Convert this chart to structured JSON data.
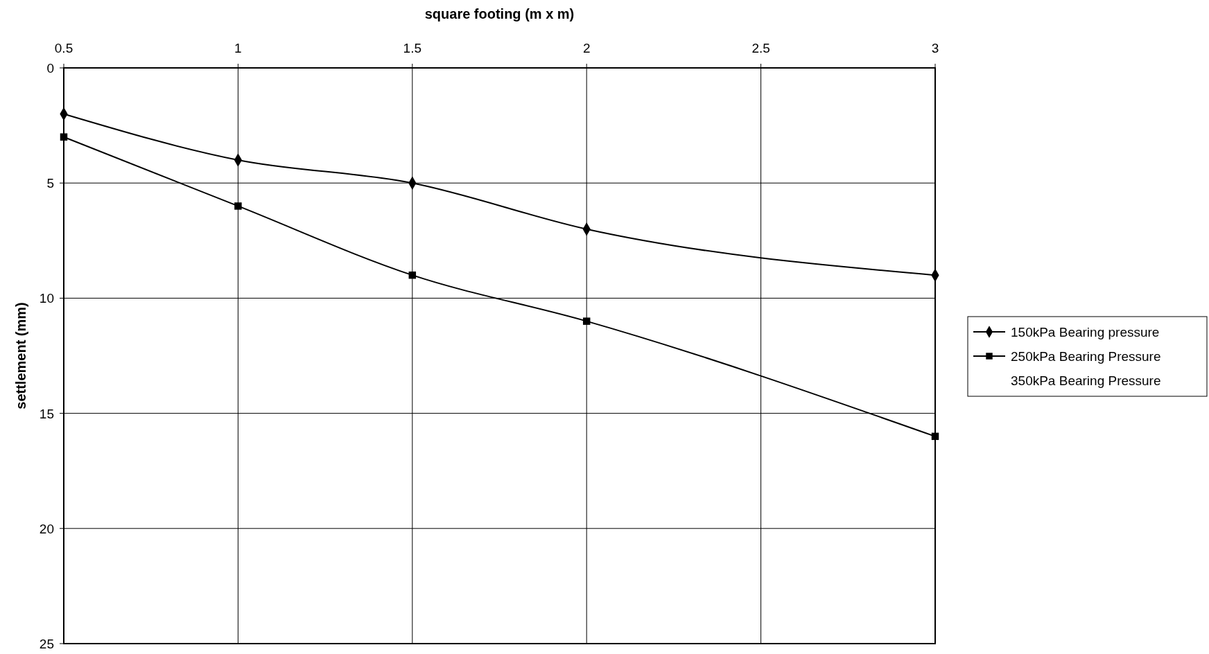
{
  "chart_data": {
    "type": "line",
    "xlabel": "square footing (m x m)",
    "ylabel": "settlement (mm)",
    "x": [
      0.5,
      1,
      1.5,
      2,
      3
    ],
    "xlim": [
      0.5,
      3
    ],
    "xticks": [
      0.5,
      1,
      1.5,
      2,
      2.5,
      3
    ],
    "ylim": [
      25,
      0
    ],
    "yticks": [
      0,
      5,
      10,
      15,
      20,
      25
    ],
    "grid": true,
    "legend": "right",
    "line_style": "solid",
    "series": [
      {
        "name": "150kPa Bearing pressure",
        "color": "#000000",
        "marker": "diamond",
        "values": [
          2,
          4,
          5,
          7,
          9
        ]
      },
      {
        "name": "250kPa Bearing Pressure",
        "color": "#000000",
        "marker": "square",
        "values": [
          3,
          6,
          9,
          11,
          16
        ]
      },
      {
        "name": "350kPa Bearing Pressure",
        "marker": "none",
        "values": [
          null,
          null,
          null,
          null,
          null
        ]
      }
    ]
  }
}
